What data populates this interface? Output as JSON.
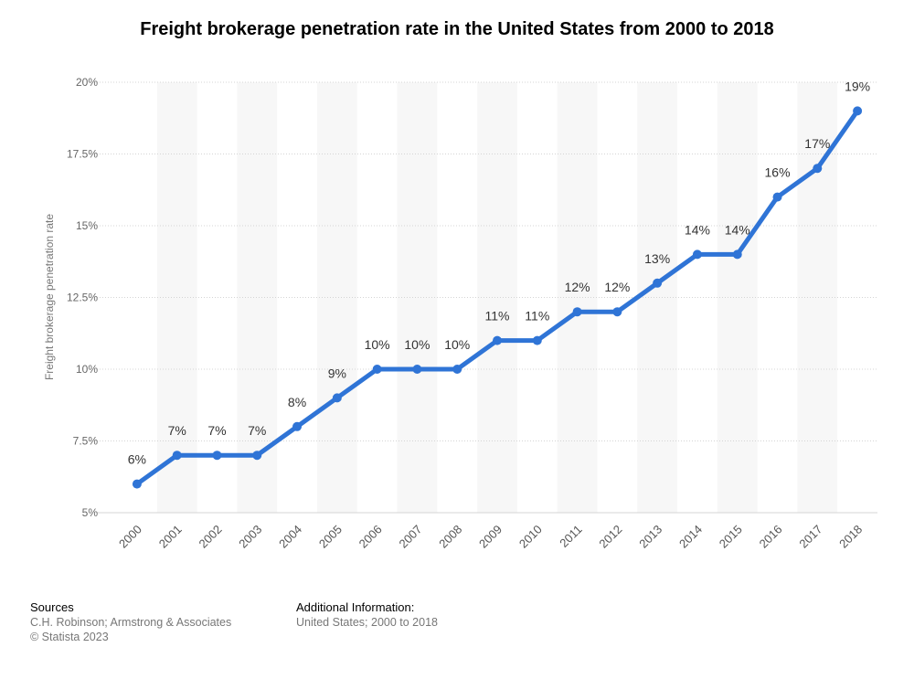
{
  "title": "Freight brokerage penetration rate in the United States from 2000 to 2018",
  "chart_data": {
    "type": "line",
    "title": "Freight brokerage penetration rate in the United States from 2000 to 2018",
    "xlabel": "",
    "ylabel": "Freight brokerage penetration rate",
    "x": [
      "2000",
      "2001",
      "2002",
      "2003",
      "2004",
      "2005",
      "2006",
      "2007",
      "2008",
      "2009",
      "2010",
      "2011",
      "2012",
      "2013",
      "2014",
      "2015",
      "2016",
      "2017",
      "2018"
    ],
    "values": [
      6,
      7,
      7,
      7,
      8,
      9,
      10,
      10,
      10,
      11,
      11,
      12,
      12,
      13,
      14,
      14,
      16,
      17,
      19
    ],
    "data_labels": [
      "6%",
      "7%",
      "7%",
      "7%",
      "8%",
      "9%",
      "10%",
      "10%",
      "10%",
      "11%",
      "11%",
      "12%",
      "12%",
      "13%",
      "14%",
      "14%",
      "16%",
      "17%",
      "19%"
    ],
    "ylim": [
      5,
      20
    ],
    "yticks": [
      5,
      7.5,
      10,
      12.5,
      15,
      17.5,
      20
    ],
    "ytick_labels": [
      "5%",
      "7.5%",
      "10%",
      "12.5%",
      "15%",
      "17.5%",
      "20%"
    ],
    "grid": true,
    "line_color": "#2f74d6"
  },
  "footer": {
    "sources_heading": "Sources",
    "sources_text": "C.H. Robinson; Armstrong & Associates",
    "copyright": "© Statista 2023",
    "info_heading": "Additional Information:",
    "info_text": "United States; 2000 to 2018"
  }
}
